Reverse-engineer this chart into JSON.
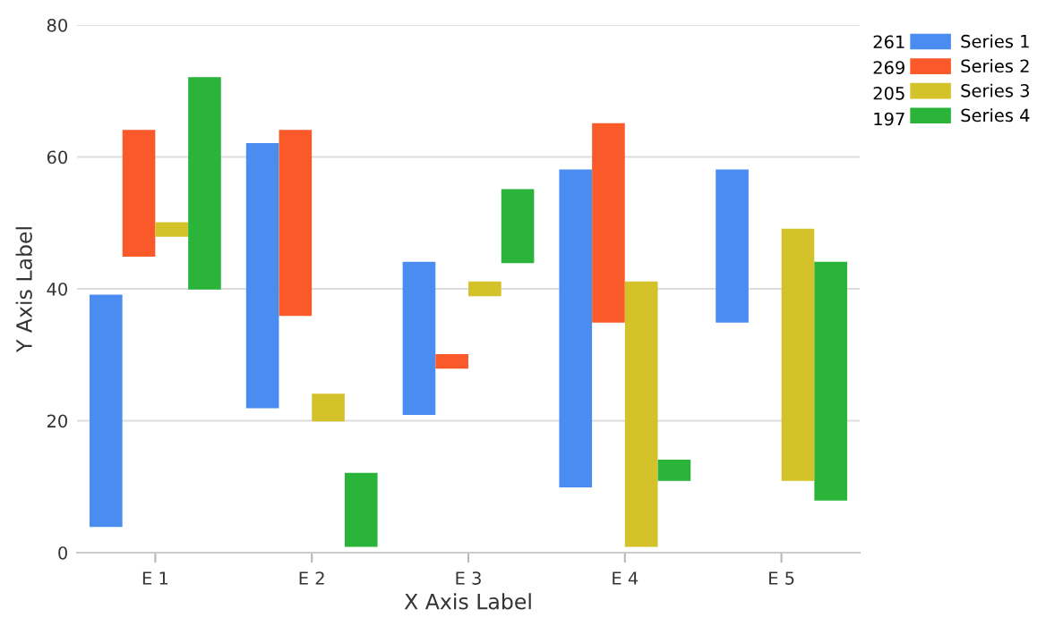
{
  "chart_data": {
    "type": "bar",
    "xlabel": "X Axis Label",
    "ylabel": "Y Axis Label",
    "categories": [
      "E 1",
      "E 2",
      "E 3",
      "E 4",
      "E 5"
    ],
    "series": [
      {
        "name": "Series 1",
        "color": "#4a8cf0",
        "base": [
          4,
          22,
          21,
          10,
          35
        ],
        "values": [
          35,
          40,
          23,
          48,
          23
        ]
      },
      {
        "name": "Series 2",
        "color": "#fa5a2a",
        "base": [
          45,
          36,
          28,
          35,
          null
        ],
        "values": [
          19,
          28,
          2,
          30,
          null
        ]
      },
      {
        "name": "Series 3",
        "color": "#d4c22a",
        "base": [
          48,
          20,
          39,
          1,
          11
        ],
        "values": [
          2,
          4,
          2,
          40,
          38
        ]
      },
      {
        "name": "Series 4",
        "color": "#2ab43a",
        "base": [
          40,
          1,
          44,
          11,
          8
        ],
        "values": [
          32,
          11,
          11,
          3,
          36
        ]
      }
    ],
    "annotations": [
      "261",
      "269",
      "205",
      "197"
    ],
    "ylim": [
      0,
      80
    ],
    "yticks": [
      0,
      20,
      40,
      60,
      80
    ],
    "grid": "y",
    "legend": "top right"
  }
}
